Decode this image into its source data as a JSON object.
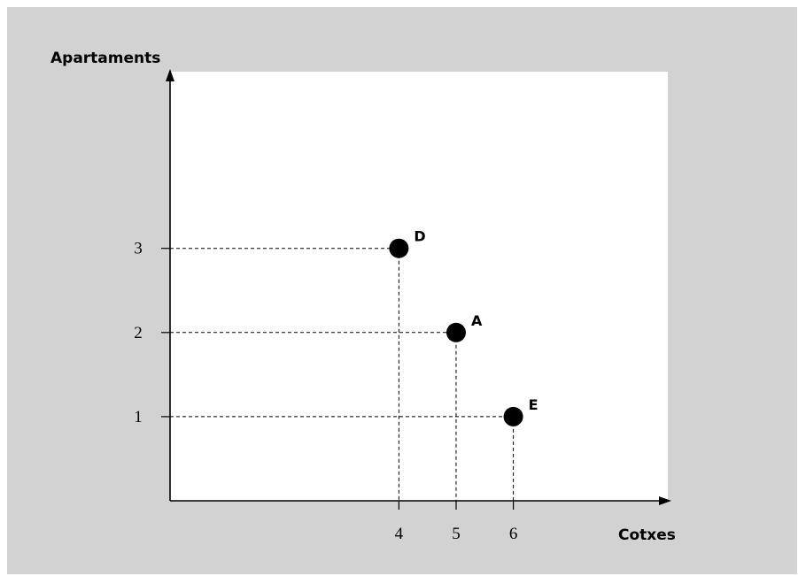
{
  "chart_data": {
    "type": "scatter",
    "title": "",
    "xlabel": "Cotxes",
    "ylabel": "Apartaments",
    "x_ticks": [
      "4",
      "5",
      "6"
    ],
    "y_ticks": [
      "1",
      "2",
      "3"
    ],
    "xlim": [
      0,
      8.7
    ],
    "ylim": [
      0,
      5.1
    ],
    "grid": false,
    "reference_lines": "dashed drop lines from each point to both axes",
    "points": [
      {
        "label": "D",
        "x": 4,
        "y": 3
      },
      {
        "label": "A",
        "x": 5,
        "y": 2
      },
      {
        "label": "E",
        "x": 6,
        "y": 1
      }
    ],
    "colors": {
      "background": "#d2d2d2",
      "plot_area": "#ffffff",
      "axis": "#000000",
      "points": "#000000"
    }
  }
}
